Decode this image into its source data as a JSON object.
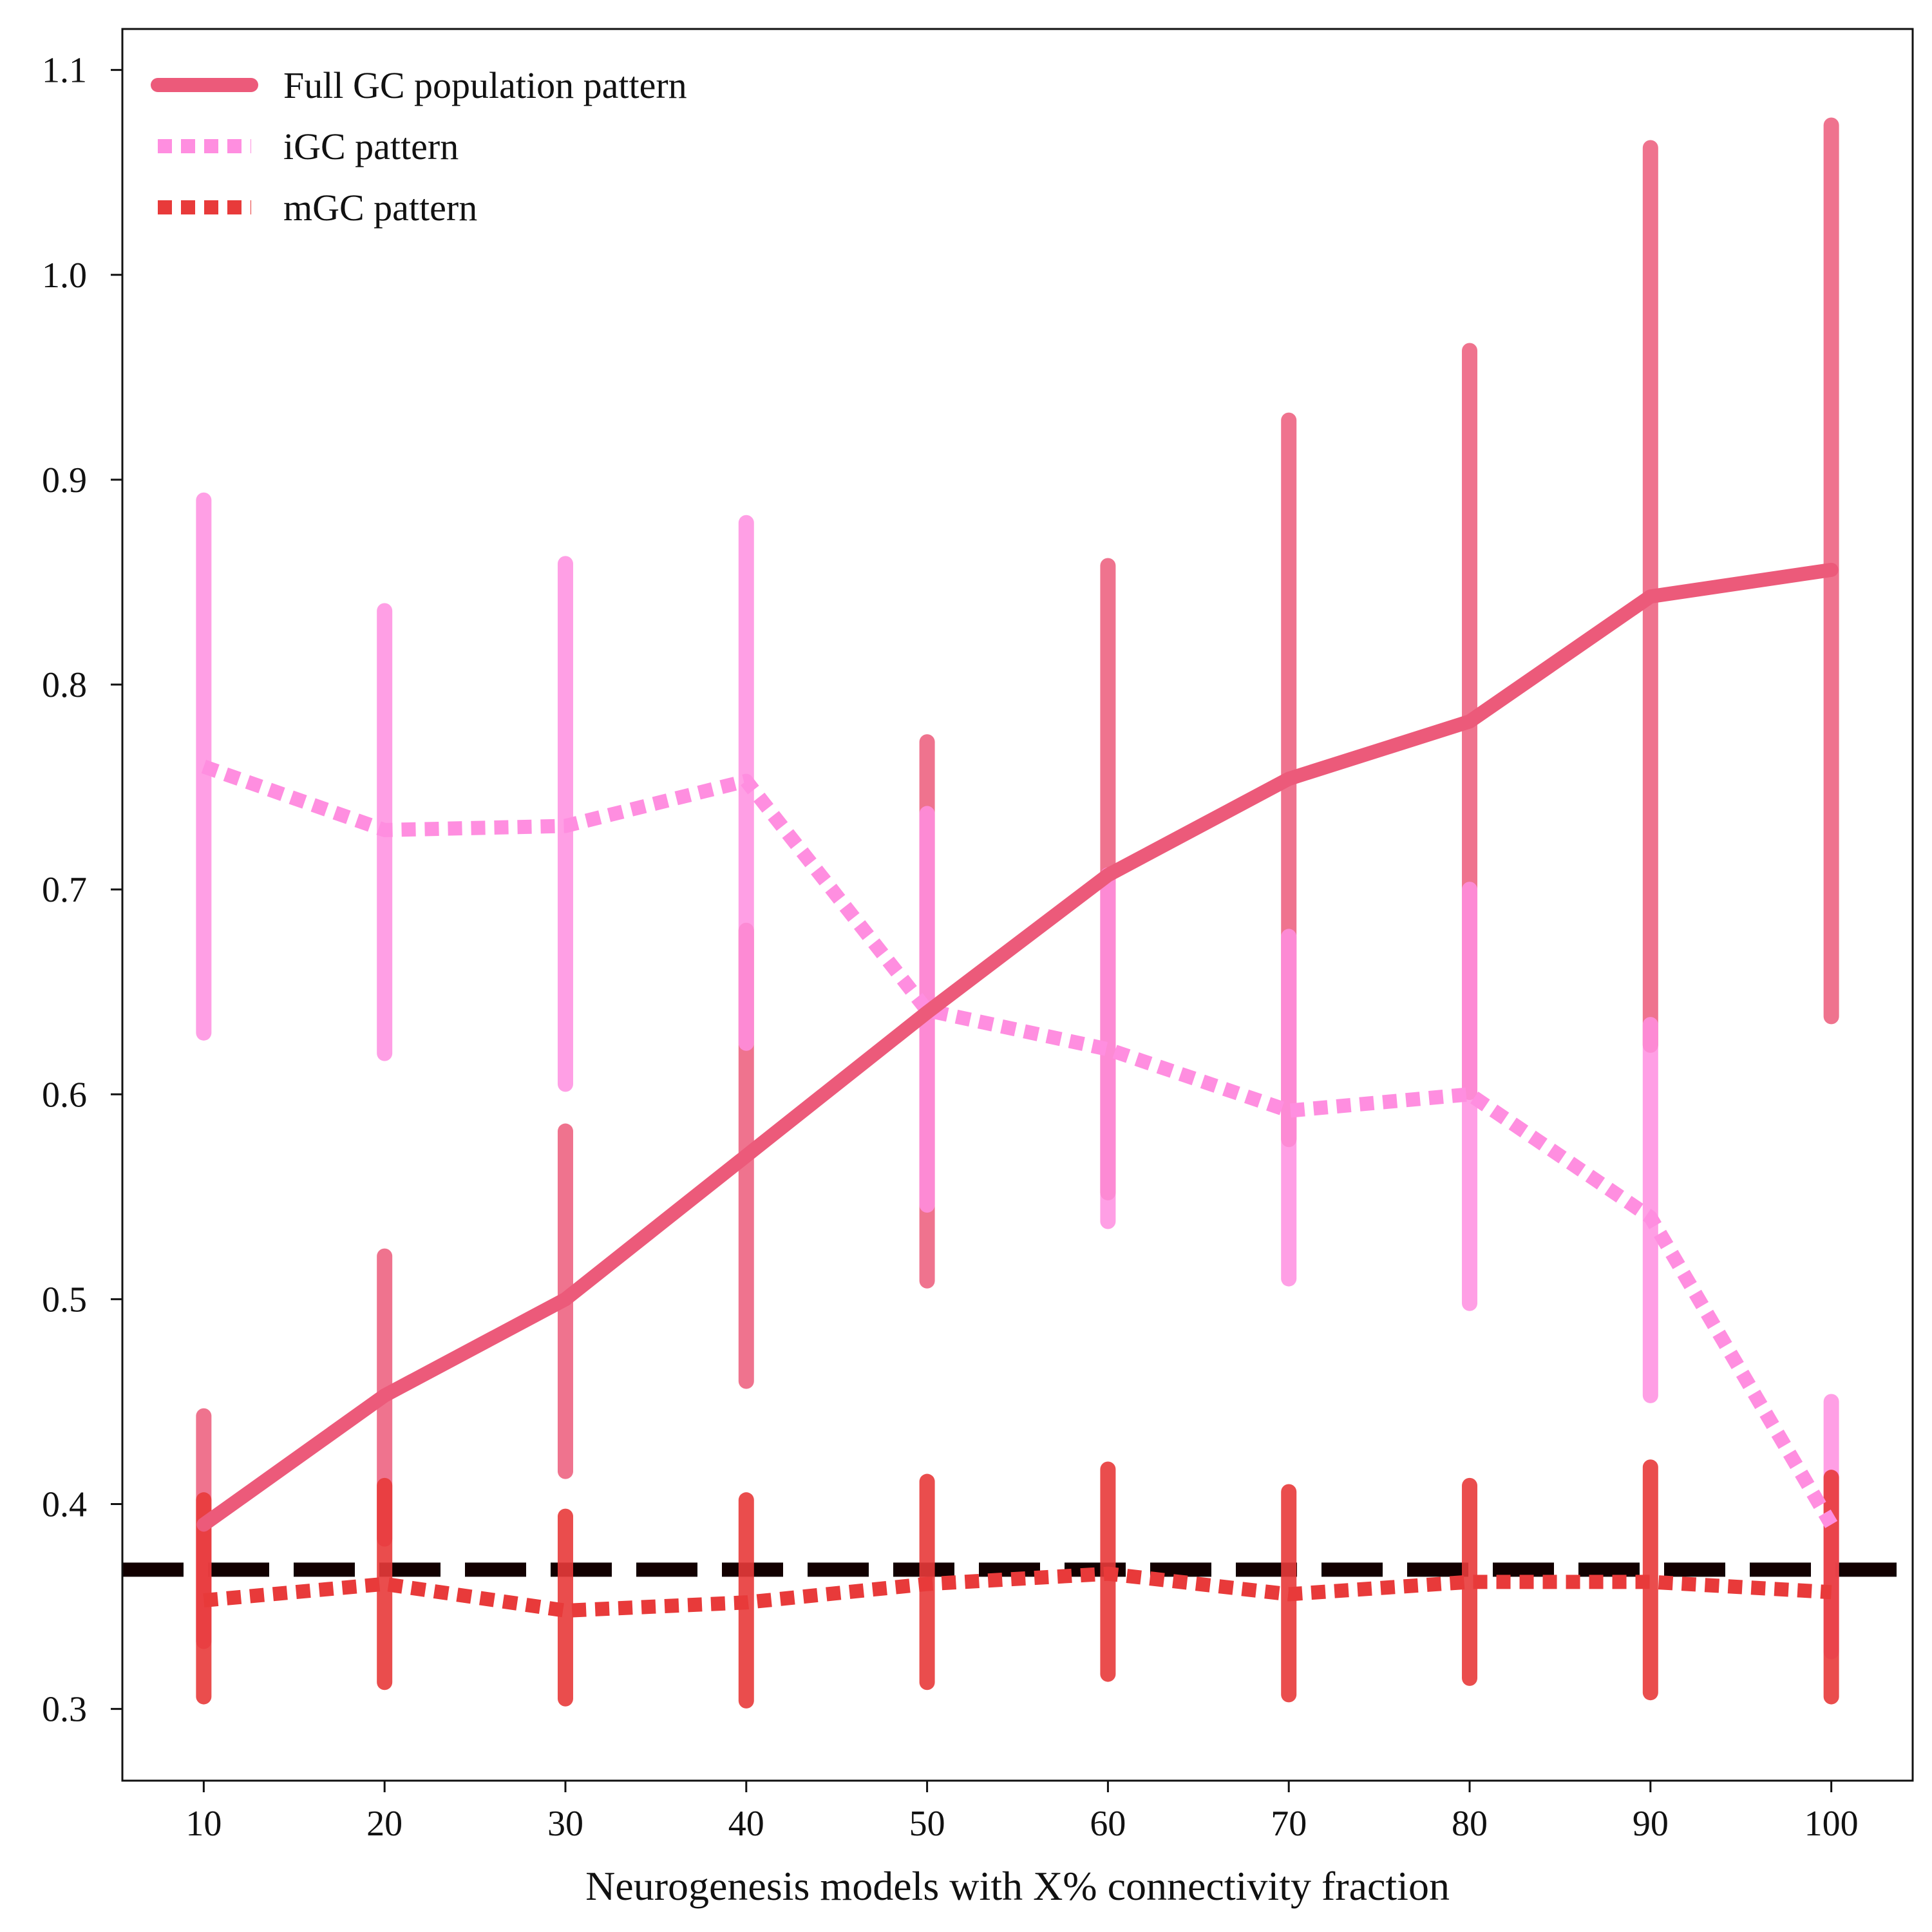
{
  "chart_data": {
    "type": "line",
    "xlabel": "Neurogenesis models with X% connectivity fraction",
    "ylabel": "",
    "x": [
      10,
      20,
      30,
      40,
      50,
      60,
      70,
      80,
      90,
      100
    ],
    "x_ticks": [
      "10",
      "20",
      "30",
      "40",
      "50",
      "60",
      "70",
      "80",
      "90",
      "100"
    ],
    "y_ticks": [
      "0.3",
      "0.4",
      "0.5",
      "0.6",
      "0.7",
      "0.8",
      "0.9",
      "1.0",
      "1.1"
    ],
    "ylim": [
      0.265,
      1.12
    ],
    "xlim": [
      5.5,
      104.5
    ],
    "grid": false,
    "legend_position": "top-left",
    "reference_line": {
      "y": 0.368,
      "style": "dashed",
      "color": "#120000"
    },
    "series": [
      {
        "name": "Full GC population pattern",
        "style": "solid",
        "color": "#ec5a7a",
        "values": [
          0.39,
          0.453,
          0.5,
          0.57,
          0.64,
          0.707,
          0.754,
          0.782,
          0.843,
          0.856
        ],
        "error_low": [
          0.333,
          0.383,
          0.416,
          0.46,
          0.509,
          0.552,
          0.578,
          0.601,
          0.624,
          0.638
        ],
        "error_high": [
          0.443,
          0.521,
          0.582,
          0.68,
          0.772,
          0.858,
          0.929,
          0.963,
          1.062,
          1.073
        ]
      },
      {
        "name": "iGC pattern",
        "style": "dotted",
        "color": "#ff8ee0",
        "values": [
          0.76,
          0.729,
          0.731,
          0.753,
          0.641,
          0.622,
          0.592,
          0.6,
          0.54,
          0.39
        ],
        "error_low": [
          0.63,
          0.62,
          0.605,
          0.625,
          0.546,
          0.538,
          0.51,
          0.498,
          0.453,
          0.328
        ],
        "error_high": [
          0.89,
          0.836,
          0.859,
          0.879,
          0.737,
          0.707,
          0.677,
          0.7,
          0.634,
          0.45
        ]
      },
      {
        "name": "mGC pattern",
        "style": "dotted",
        "color": "#e83a3a",
        "values": [
          0.353,
          0.361,
          0.348,
          0.352,
          0.361,
          0.366,
          0.356,
          0.362,
          0.362,
          0.357
        ],
        "error_low": [
          0.306,
          0.313,
          0.305,
          0.304,
          0.313,
          0.317,
          0.307,
          0.315,
          0.308,
          0.306
        ],
        "error_high": [
          0.402,
          0.409,
          0.394,
          0.402,
          0.411,
          0.417,
          0.406,
          0.409,
          0.418,
          0.413
        ]
      }
    ]
  }
}
